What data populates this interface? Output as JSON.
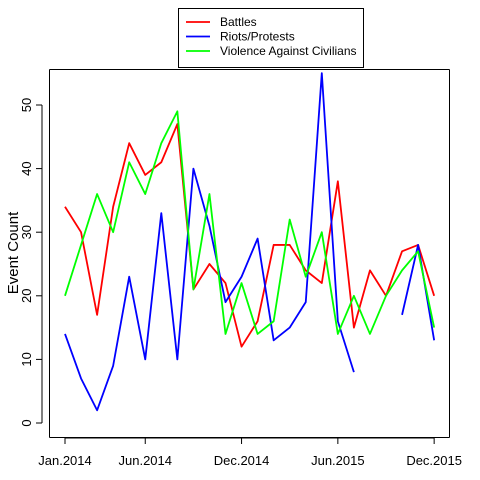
{
  "chart_data": {
    "type": "line",
    "title": "",
    "xlabel": "",
    "ylabel": "Event Count",
    "x": [
      "2014-01",
      "2014-02",
      "2014-03",
      "2014-04",
      "2014-05",
      "2014-06",
      "2014-07",
      "2014-08",
      "2014-09",
      "2014-10",
      "2014-11",
      "2014-12",
      "2015-01",
      "2015-02",
      "2015-03",
      "2015-04",
      "2015-05",
      "2015-06",
      "2015-07",
      "2015-08",
      "2015-09",
      "2015-10",
      "2015-11",
      "2015-12"
    ],
    "x_tick_labels": [
      "Jan.2014",
      "Jun.2014",
      "Dec.2014",
      "Jun.2015",
      "Dec.2015"
    ],
    "x_tick_index": [
      0,
      5,
      11,
      17,
      23
    ],
    "ylim": [
      0,
      55
    ],
    "y_ticks": [
      0,
      10,
      20,
      30,
      40,
      50
    ],
    "grid": false,
    "legend_position": "top-center",
    "series": [
      {
        "name": "Battles",
        "color": "#ff0000",
        "values": [
          34,
          30,
          17,
          34,
          44,
          39,
          41,
          47,
          21,
          25,
          22,
          12,
          16,
          28,
          28,
          24,
          22,
          38,
          15,
          24,
          20,
          27,
          28,
          20
        ]
      },
      {
        "name": "Riots/Protests",
        "color": "#0000ff",
        "values": [
          14,
          7,
          2,
          9,
          23,
          10,
          33,
          10,
          40,
          31,
          19,
          23,
          29,
          13,
          15,
          19,
          55,
          16,
          8,
          null,
          null,
          17,
          28,
          13
        ]
      },
      {
        "name": "Violence Against Civilians",
        "color": "#00ff00",
        "values": [
          20,
          28,
          36,
          30,
          41,
          36,
          44,
          49,
          21,
          36,
          14,
          22,
          14,
          16,
          32,
          23,
          30,
          14,
          20,
          14,
          20,
          24,
          27,
          15
        ]
      }
    ]
  }
}
